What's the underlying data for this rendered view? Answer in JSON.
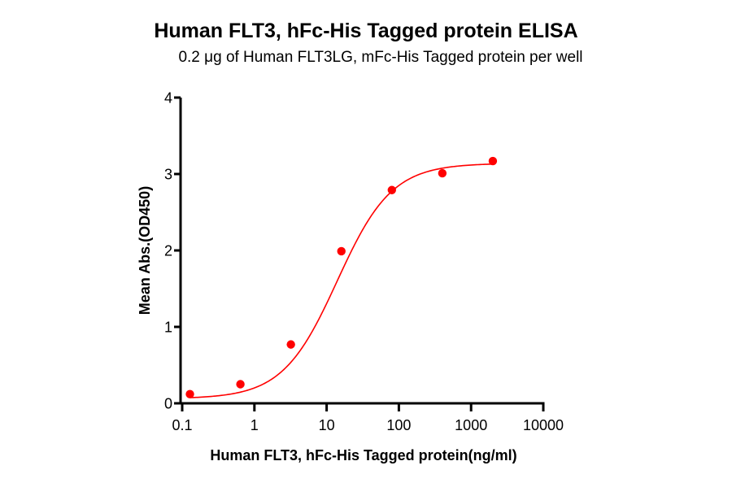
{
  "chart_data": {
    "type": "scatter",
    "title": "Human FLT3, hFc-His Tagged protein ELISA",
    "subtitle": "0.2 μg of Human FLT3LG, mFc-His Tagged protein per well",
    "xlabel": "Human FLT3, hFc-His Tagged protein(ng/ml)",
    "ylabel": "Mean Abs.(OD450)",
    "xscale": "log",
    "xlim": [
      0.1,
      10000
    ],
    "ylim": [
      0,
      4
    ],
    "xticks": [
      "0.1",
      "1",
      "10",
      "100",
      "1000",
      "10000"
    ],
    "yticks": [
      "0",
      "1",
      "2",
      "3",
      "4"
    ],
    "grid": false,
    "legend": null,
    "series": [
      {
        "name": "Human FLT3, hFc-His Tagged protein",
        "color": "#ff0000",
        "marker": "circle",
        "fit": "4PL sigmoidal curve",
        "x": [
          0.128,
          0.64,
          3.2,
          16,
          80,
          400,
          2000
        ],
        "y": [
          0.12,
          0.25,
          0.77,
          1.99,
          2.79,
          3.01,
          3.17
        ]
      }
    ]
  }
}
